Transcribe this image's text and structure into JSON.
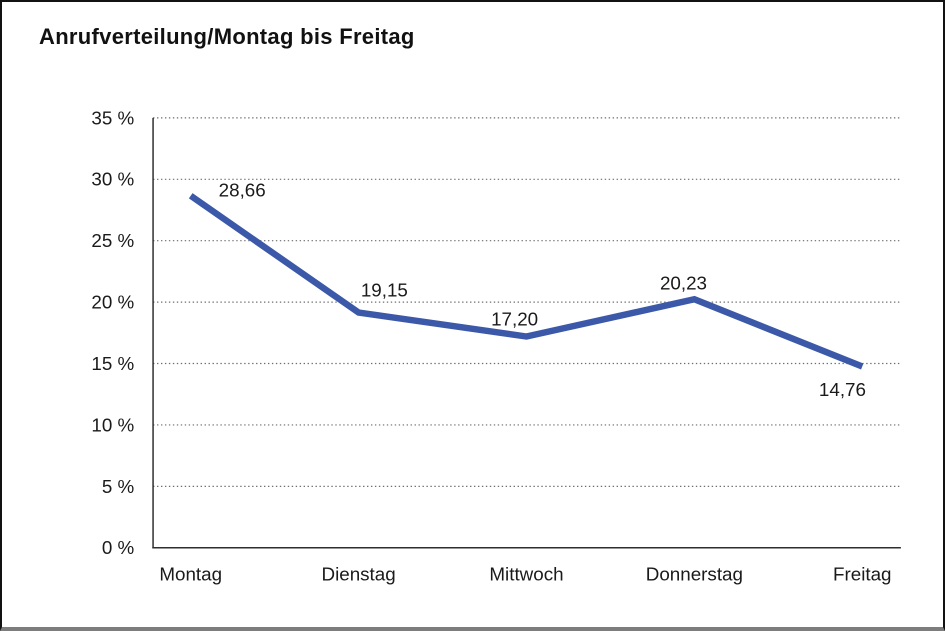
{
  "chart_data": {
    "type": "line",
    "title": "Anrufverteilung/Montag bis Freitag",
    "categories": [
      "Montag",
      "Dienstag",
      "Mittwoch",
      "Donnerstag",
      "Freitag"
    ],
    "values": [
      28.66,
      19.15,
      17.2,
      20.23,
      14.76
    ],
    "point_labels": [
      "28,66",
      "19,15",
      "17,20",
      "20,23",
      "14,76"
    ],
    "ytick_labels": [
      "0 %",
      "5 %",
      "10 %",
      "15 %",
      "20 %",
      "25 %",
      "30 %",
      "35 %"
    ],
    "ylim": [
      0,
      35
    ],
    "ytick_step": 5,
    "grid": "horizontal-dotted",
    "legend": "none"
  },
  "colors": {
    "line": "#3B59A8",
    "text": "#1a1a1a",
    "grid": "#6e6e6e",
    "axis": "#2e2e2e",
    "background": "#ffffff",
    "frame_border": "#121212",
    "frame_bottom": "#7d7d7d"
  }
}
